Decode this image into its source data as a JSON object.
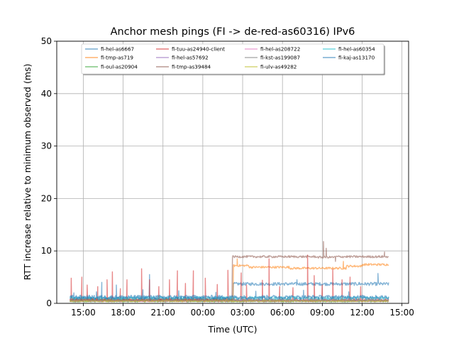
{
  "chart_data": {
    "type": "line",
    "title": "Anchor mesh pings (FI -> de-red-as60316) IPv6",
    "xlabel": "Time (UTC)",
    "ylabel": "RTT increase relative to minimum observed (ms)",
    "xlim": [
      13.0,
      39.5
    ],
    "ylim": [
      0,
      50
    ],
    "x_unit": "hours since 00:00 of the first day shown",
    "xticks": [
      {
        "value": 15,
        "label": "15:00"
      },
      {
        "value": 18,
        "label": "18:00"
      },
      {
        "value": 21,
        "label": "21:00"
      },
      {
        "value": 24,
        "label": "00:00"
      },
      {
        "value": 27,
        "label": "03:00"
      },
      {
        "value": 30,
        "label": "06:00"
      },
      {
        "value": 33,
        "label": "09:00"
      },
      {
        "value": 36,
        "label": "12:00"
      },
      {
        "value": 39,
        "label": "15:00"
      }
    ],
    "yticks": [
      {
        "value": 0,
        "label": "0"
      },
      {
        "value": 10,
        "label": "10"
      },
      {
        "value": 20,
        "label": "20"
      },
      {
        "value": 30,
        "label": "30"
      },
      {
        "value": 40,
        "label": "40"
      },
      {
        "value": 50,
        "label": "50"
      }
    ],
    "grid": true,
    "legend_position": "top",
    "legend_columns": 4,
    "x_range_data": [
      14.0,
      38.0
    ],
    "series": [
      {
        "name": "fi-hel-as6667",
        "color": "#1f77b4",
        "baseline": 0.9,
        "noise": 0.3,
        "segments": [
          {
            "from": 26.3,
            "value": 3.7
          }
        ],
        "spikes": [
          [
            16.4,
            4.0
          ],
          [
            17.5,
            3.5
          ],
          [
            20.0,
            5.5
          ],
          [
            31.1,
            4.5
          ],
          [
            35.8,
            4.0
          ],
          [
            37.2,
            5.7
          ]
        ]
      },
      {
        "name": "fi-tmp-as719",
        "color": "#ff7f0e",
        "baseline": 0.6,
        "noise": 0.2,
        "segments": [
          {
            "from": 26.3,
            "value": 7.2
          },
          {
            "from": 27.5,
            "value": 6.9
          },
          {
            "from": 30.5,
            "value": 6.7
          },
          {
            "from": 34.8,
            "value": 7.1
          },
          {
            "from": 36.0,
            "value": 7.4
          }
        ],
        "spikes": [
          [
            26.6,
            8.5
          ],
          [
            34.6,
            8.0
          ]
        ]
      },
      {
        "name": "fi-oul-as20904",
        "color": "#2ca02c",
        "baseline": 0.4,
        "noise": 0.15,
        "segments": [],
        "spikes": []
      },
      {
        "name": "fi-tuu-as24940-client",
        "color": "#d62728",
        "baseline": 0.6,
        "noise": 0.3,
        "segments": [],
        "spikes": [
          [
            14.1,
            4.8
          ],
          [
            14.9,
            5.0
          ],
          [
            15.3,
            3.5
          ],
          [
            16.1,
            3.2
          ],
          [
            16.8,
            4.5
          ],
          [
            17.2,
            6.0
          ],
          [
            17.8,
            2.8
          ],
          [
            18.3,
            4.5
          ],
          [
            19.4,
            6.6
          ],
          [
            20.0,
            4.5
          ],
          [
            20.7,
            3.2
          ],
          [
            21.5,
            4.5
          ],
          [
            22.1,
            6.2
          ],
          [
            22.7,
            3.8
          ],
          [
            23.3,
            6.2
          ],
          [
            24.2,
            4.8
          ],
          [
            25.1,
            3.6
          ],
          [
            25.9,
            6.3
          ],
          [
            26.9,
            5.8
          ],
          [
            27.3,
            3.5
          ],
          [
            28.5,
            4.4
          ],
          [
            29.0,
            8.5
          ],
          [
            29.8,
            3.2
          ],
          [
            30.8,
            3.0
          ],
          [
            31.9,
            9.2
          ],
          [
            32.4,
            5.3
          ],
          [
            33.0,
            3.5
          ],
          [
            33.8,
            6.5
          ],
          [
            34.5,
            4.5
          ],
          [
            35.1,
            5.0
          ],
          [
            35.9,
            3.2
          ]
        ]
      },
      {
        "name": "fi-hel-as57692",
        "color": "#9467bd",
        "baseline": 0.5,
        "noise": 0.15,
        "segments": [],
        "spikes": []
      },
      {
        "name": "fi-tmp-as39484",
        "color": "#8c564b",
        "baseline": 0.7,
        "noise": 0.2,
        "segments": [
          {
            "from": 26.2,
            "value": 8.9
          },
          {
            "from": 32.6,
            "value": 8.8
          },
          {
            "from": 34.0,
            "value": 8.9
          }
        ],
        "spikes": [
          [
            33.1,
            11.8
          ],
          [
            33.3,
            10.5
          ],
          [
            34.0,
            8.0
          ],
          [
            37.7,
            9.8
          ]
        ]
      },
      {
        "name": "fi-hel-as208722",
        "color": "#e377c2",
        "baseline": 0.5,
        "noise": 0.15,
        "segments": [],
        "spikes": []
      },
      {
        "name": "fi-kst-as199087",
        "color": "#7f7f7f",
        "baseline": 0.6,
        "noise": 0.2,
        "segments": [],
        "spikes": []
      },
      {
        "name": "fi-ulv-as49282",
        "color": "#bcbd22",
        "baseline": 0.45,
        "noise": 0.15,
        "segments": [],
        "spikes": []
      },
      {
        "name": "fi-hel-as60354",
        "color": "#17becf",
        "baseline": 1.0,
        "noise": 0.3,
        "segments": [],
        "spikes": []
      },
      {
        "name": "fi-kaj-as13170",
        "color": "#1f77b4",
        "baseline": 1.2,
        "noise": 0.35,
        "segments": [],
        "spikes": [
          [
            14.3,
            2.0
          ],
          [
            16.0,
            2.2
          ],
          [
            19.5,
            2.6
          ],
          [
            22.2,
            2.4
          ],
          [
            25.0,
            2.1
          ],
          [
            28.0,
            2.3
          ],
          [
            31.6,
            2.5
          ],
          [
            35.0,
            2.2
          ]
        ]
      }
    ]
  }
}
